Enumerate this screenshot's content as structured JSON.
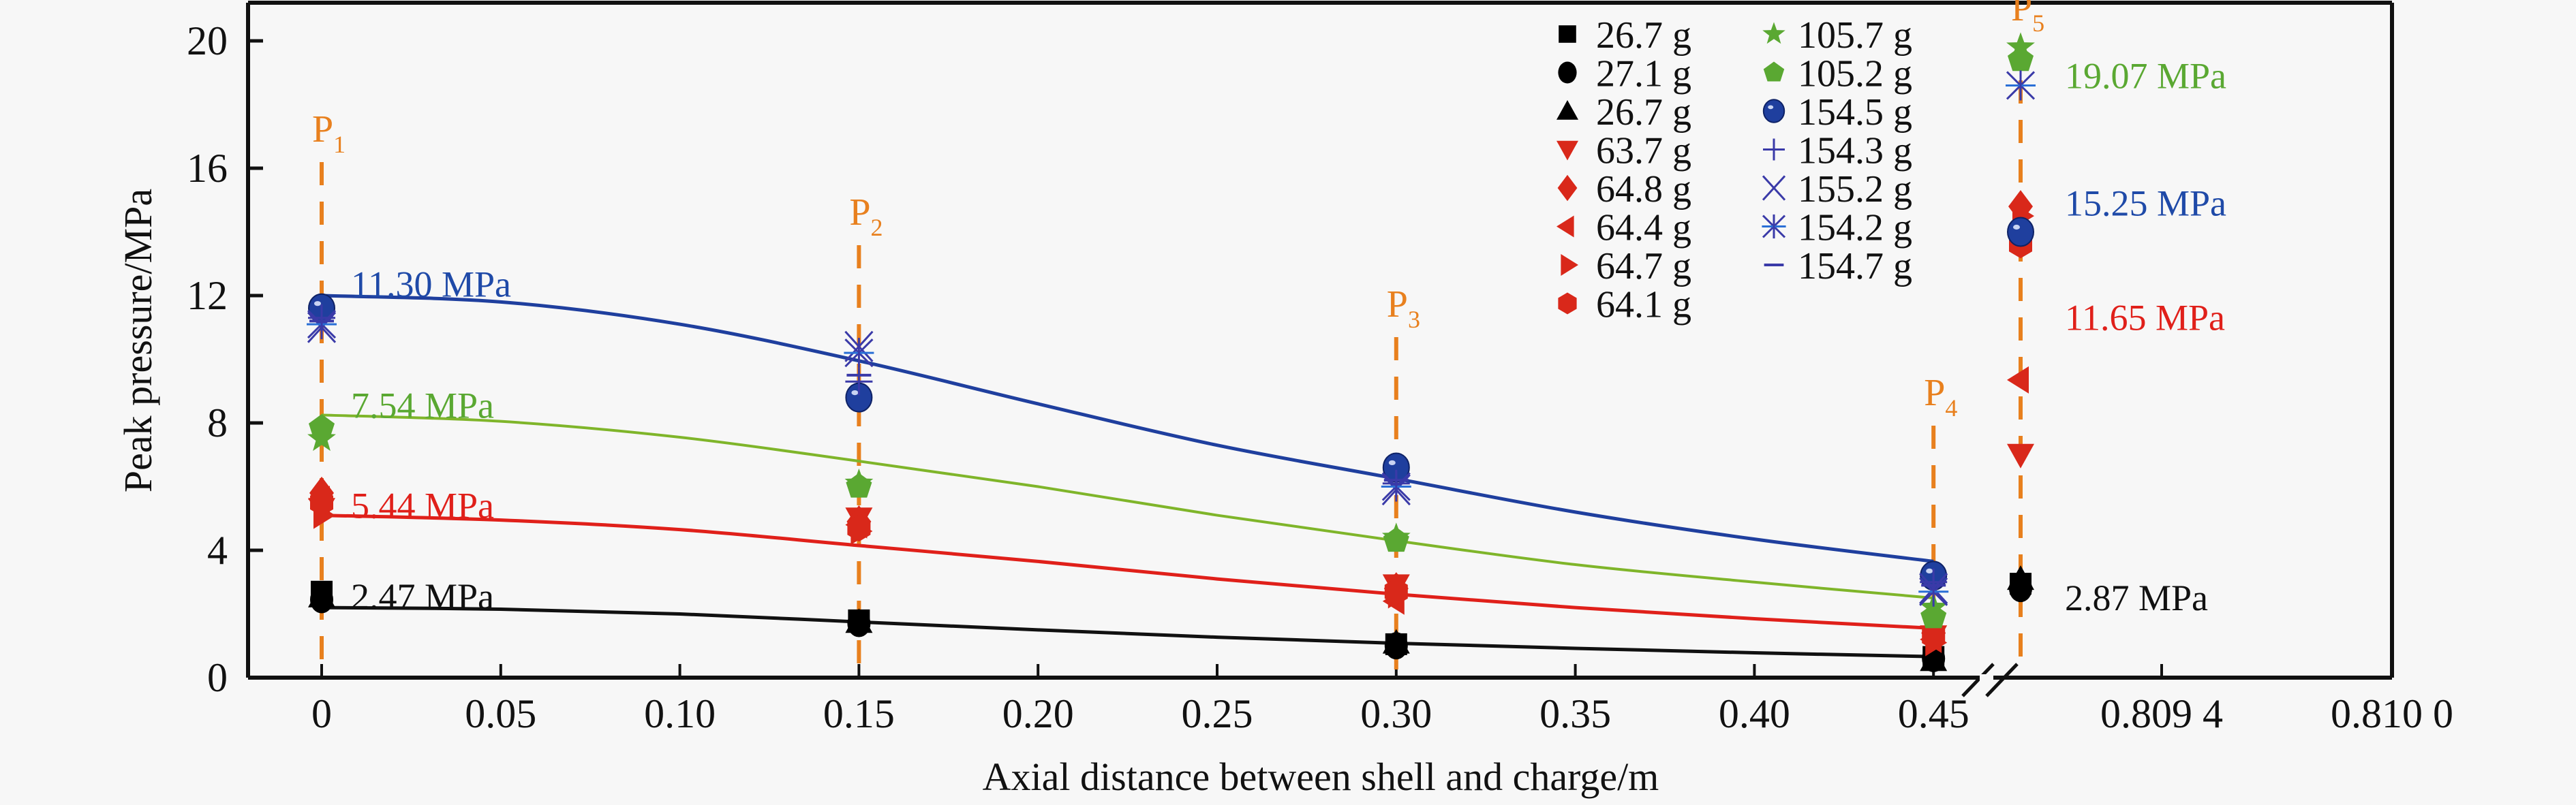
{
  "chart_data": {
    "type": "scatter",
    "title": "",
    "xlabel": "Axial distance between shell and charge/m",
    "ylabel": "Peak pressure/MPa",
    "ylim": [
      0,
      21
    ],
    "yticks": [
      "0",
      "4",
      "8",
      "12",
      "16",
      "20"
    ],
    "ytick_values": [
      0,
      4,
      8,
      12,
      16,
      20
    ],
    "xlim_left_segment": [
      -0.02,
      0.465
    ],
    "xlim_right_segment": [
      0.809,
      0.8101
    ],
    "xticks": [
      {
        "value": 0,
        "label": "0",
        "segment": "left"
      },
      {
        "value": 0.05,
        "label": "0.05",
        "segment": "left"
      },
      {
        "value": 0.1,
        "label": "0.10",
        "segment": "left"
      },
      {
        "value": 0.15,
        "label": "0.15",
        "segment": "left"
      },
      {
        "value": 0.2,
        "label": "0.20",
        "segment": "left"
      },
      {
        "value": 0.25,
        "label": "0.25",
        "segment": "left"
      },
      {
        "value": 0.3,
        "label": "0.30",
        "segment": "left"
      },
      {
        "value": 0.35,
        "label": "0.35",
        "segment": "left"
      },
      {
        "value": 0.4,
        "label": "0.40",
        "segment": "left"
      },
      {
        "value": 0.45,
        "label": "0.45",
        "segment": "left"
      },
      {
        "value": 0.8094,
        "label": "0.809 4",
        "segment": "right"
      },
      {
        "value": 0.81,
        "label": "0.810 0",
        "segment": "right"
      }
    ],
    "axis_break": "between 0.45 and 0.809 4",
    "grid": false,
    "legend_position": "top-right",
    "measurement_points": [
      {
        "name": "P",
        "sub": "1",
        "x": 0
      },
      {
        "name": "P",
        "sub": "2",
        "x": 0.15
      },
      {
        "name": "P",
        "sub": "3",
        "x": 0.3
      },
      {
        "name": "P",
        "sub": "4",
        "x": 0.45
      },
      {
        "name": "P",
        "sub": "5",
        "x": 0.8091
      }
    ],
    "series": [
      {
        "name": "26.7 g",
        "marker": "square",
        "color": "#000000",
        "group": "black",
        "points": [
          [
            0,
            2.7
          ],
          [
            0.15,
            1.8
          ],
          [
            0.3,
            1.05
          ],
          [
            0.45,
            0.65
          ],
          [
            0.8091,
            2.95
          ]
        ]
      },
      {
        "name": "27.1 g",
        "marker": "circle",
        "color": "#000000",
        "group": "black",
        "points": [
          [
            0,
            2.45
          ],
          [
            0.15,
            1.7
          ],
          [
            0.3,
            1.0
          ],
          [
            0.45,
            0.6
          ],
          [
            0.8091,
            2.8
          ]
        ]
      },
      {
        "name": "26.7 g",
        "marker": "triangle-up",
        "color": "#000000",
        "group": "black",
        "points": [
          [
            0,
            2.55
          ],
          [
            0.15,
            1.75
          ],
          [
            0.3,
            1.1
          ],
          [
            0.45,
            0.55
          ],
          [
            0.8091,
            3.1
          ]
        ]
      },
      {
        "name": "63.7 g",
        "marker": "triangle-down",
        "color": "#d9281a",
        "group": "red",
        "points": [
          [
            0,
            5.3
          ],
          [
            0.15,
            5.0
          ],
          [
            0.3,
            2.9
          ],
          [
            0.45,
            1.3
          ],
          [
            0.8091,
            7.0
          ]
        ]
      },
      {
        "name": "64.8 g",
        "marker": "diamond",
        "color": "#d9281a",
        "group": "red",
        "points": [
          [
            0,
            5.8
          ],
          [
            0.15,
            4.9
          ],
          [
            0.3,
            2.8
          ],
          [
            0.45,
            1.4
          ],
          [
            0.8091,
            14.8
          ]
        ]
      },
      {
        "name": "64.4 g",
        "marker": "triangle-left",
        "color": "#d9281a",
        "group": "red",
        "points": [
          [
            0,
            5.6
          ],
          [
            0.15,
            4.8
          ],
          [
            0.3,
            2.4
          ],
          [
            0.45,
            1.2
          ],
          [
            0.8091,
            9.35
          ]
        ]
      },
      {
        "name": "64.7 g",
        "marker": "triangle-right",
        "color": "#d9281a",
        "group": "red",
        "points": [
          [
            0,
            5.1
          ],
          [
            0.15,
            4.6
          ],
          [
            0.3,
            2.6
          ],
          [
            0.45,
            1.1
          ],
          [
            0.8091,
            14.5
          ]
        ]
      },
      {
        "name": "64.1 g",
        "marker": "hexagon",
        "color": "#d9281a",
        "group": "red",
        "points": [
          [
            0,
            5.5
          ],
          [
            0.15,
            4.7
          ],
          [
            0.3,
            2.7
          ],
          [
            0.45,
            1.3
          ],
          [
            0.8091,
            13.6
          ]
        ]
      },
      {
        "name": "105.7 g",
        "marker": "star",
        "color": "#5aa832",
        "group": "green",
        "points": [
          [
            0,
            7.5
          ],
          [
            0.15,
            6.1
          ],
          [
            0.3,
            4.4
          ],
          [
            0.45,
            2.2
          ],
          [
            0.8091,
            19.8
          ]
        ]
      },
      {
        "name": "105.2 g",
        "marker": "pentagon",
        "color": "#5aa832",
        "group": "green",
        "points": [
          [
            0,
            7.85
          ],
          [
            0.15,
            6.0
          ],
          [
            0.3,
            4.3
          ],
          [
            0.45,
            1.9
          ],
          [
            0.8091,
            19.4
          ]
        ]
      },
      {
        "name": "154.5 g",
        "marker": "sphere",
        "color": "#1f3f9e",
        "group": "blue",
        "points": [
          [
            0,
            11.6
          ],
          [
            0.15,
            8.8
          ],
          [
            0.3,
            6.6
          ],
          [
            0.45,
            3.2
          ],
          [
            0.8091,
            14.0
          ]
        ]
      },
      {
        "name": "154.3 g",
        "marker": "plus",
        "color": "#3a3aa8",
        "group": "blue",
        "points": [
          [
            0,
            11.3
          ],
          [
            0.15,
            9.3
          ],
          [
            0.3,
            6.1
          ],
          [
            0.45,
            3.0
          ]
        ]
      },
      {
        "name": "155.2 g",
        "marker": "x",
        "color": "#3a3aa8",
        "group": "blue",
        "points": [
          [
            0,
            11.0
          ],
          [
            0.15,
            10.4
          ],
          [
            0.3,
            5.9
          ],
          [
            0.45,
            2.8
          ]
        ]
      },
      {
        "name": "154.2 g",
        "marker": "asterisk",
        "color": "#3a3aa8",
        "group": "blue",
        "points": [
          [
            0,
            11.1
          ],
          [
            0.15,
            10.2
          ],
          [
            0.3,
            6.0
          ],
          [
            0.45,
            2.7
          ],
          [
            0.8091,
            18.6
          ]
        ]
      },
      {
        "name": "154.7 g",
        "marker": "dash",
        "color": "#3a3aa8",
        "group": "blue",
        "points": [
          [
            0,
            11.2
          ],
          [
            0.15,
            9.5
          ],
          [
            0.3,
            6.2
          ],
          [
            0.45,
            2.9
          ]
        ]
      }
    ],
    "fit_curves": [
      {
        "group": "blue",
        "color": "#1f3f9e",
        "x": [
          0,
          0.05,
          0.1,
          0.15,
          0.2,
          0.25,
          0.3,
          0.35,
          0.4,
          0.45
        ],
        "y": [
          12.0,
          11.8,
          11.1,
          9.95,
          8.6,
          7.3,
          6.25,
          5.2,
          4.35,
          3.65
        ]
      },
      {
        "group": "green",
        "color": "#7fb52a",
        "x": [
          0,
          0.05,
          0.1,
          0.15,
          0.2,
          0.25,
          0.3,
          0.35,
          0.4,
          0.45
        ],
        "y": [
          8.25,
          8.05,
          7.55,
          6.8,
          6.0,
          5.1,
          4.3,
          3.55,
          3.0,
          2.5
        ]
      },
      {
        "group": "red",
        "color": "#e0201a",
        "x": [
          0,
          0.05,
          0.1,
          0.15,
          0.2,
          0.25,
          0.3,
          0.35,
          0.4,
          0.45
        ],
        "y": [
          5.1,
          4.95,
          4.65,
          4.15,
          3.65,
          3.1,
          2.62,
          2.2,
          1.85,
          1.55
        ]
      },
      {
        "group": "black",
        "color": "#111111",
        "x": [
          0,
          0.05,
          0.1,
          0.15,
          0.2,
          0.25,
          0.3,
          0.35,
          0.4,
          0.45
        ],
        "y": [
          2.2,
          2.15,
          2.0,
          1.75,
          1.5,
          1.27,
          1.08,
          0.92,
          0.78,
          0.66
        ]
      }
    ],
    "annotations": [
      {
        "text": "11.30 MPa",
        "color": "#1f4aa8",
        "x": 0.01,
        "y": 12.35,
        "segment": "left"
      },
      {
        "text": "7.54 MPa",
        "color": "#5aa832",
        "x": 0.01,
        "y": 8.55,
        "segment": "left"
      },
      {
        "text": "5.44 MPa",
        "color": "#e0201a",
        "x": 0.01,
        "y": 5.4,
        "segment": "left"
      },
      {
        "text": "2.47 MPa",
        "color": "#111111",
        "x": 0.01,
        "y": 2.55,
        "segment": "left"
      },
      {
        "text": "19.07 MPa",
        "color": "#5aa832",
        "x": 0.80925,
        "y": 18.9,
        "segment": "right"
      },
      {
        "text": "15.25 MPa",
        "color": "#1f4aa8",
        "x": 0.80925,
        "y": 14.9,
        "segment": "right"
      },
      {
        "text": "11.65 MPa",
        "color": "#e0201a",
        "x": 0.80925,
        "y": 11.3,
        "segment": "right"
      },
      {
        "text": "2.87 MPa",
        "color": "#111111",
        "x": 0.80925,
        "y": 2.5,
        "segment": "right"
      }
    ]
  }
}
